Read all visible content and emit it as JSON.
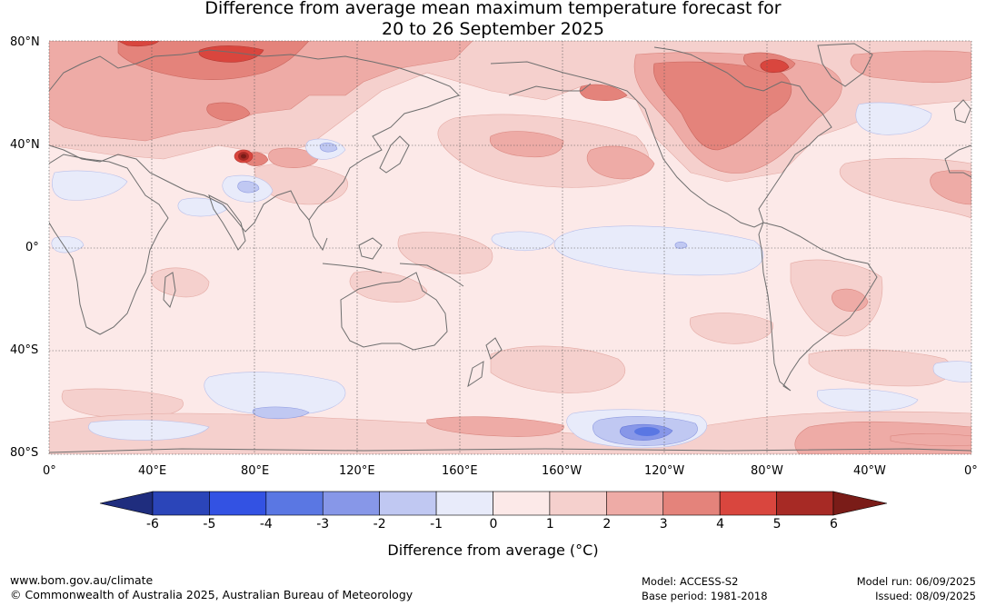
{
  "title": {
    "line1": "Difference from average mean maximum temperature forecast for",
    "line2": "20 to 26 September 2025"
  },
  "axes": {
    "lat_labels": [
      "80°N",
      "40°N",
      "0°",
      "40°S",
      "80°S"
    ],
    "lon_labels": [
      "0°",
      "40°E",
      "80°E",
      "120°E",
      "160°E",
      "160°W",
      "120°W",
      "80°W",
      "40°W",
      "0°"
    ]
  },
  "colorbar": {
    "title": "Difference from average (°C)",
    "ticks": [
      "-6",
      "-5",
      "-4",
      "-3",
      "-2",
      "-1",
      "0",
      "1",
      "2",
      "3",
      "4",
      "5",
      "6"
    ],
    "colors": [
      "#1f2d7e",
      "#2b45b9",
      "#3352e3",
      "#5a77e3",
      "#8797e8",
      "#c0c8f2",
      "#e8ebfa",
      "#fce9e8",
      "#f5d0cd",
      "#eeaba6",
      "#e4837b",
      "#d9463e",
      "#a72a25",
      "#7a1c18"
    ]
  },
  "footer": {
    "url": "www.bom.gov.au/climate",
    "copyright": "© Commonwealth of Australia 2025, Australian Bureau of Meteorology",
    "model": "Model: ACCESS-S2",
    "base_period": "Base period: 1981-2018",
    "model_run": "Model run: 06/09/2025",
    "issued": "Issued: 08/09/2025"
  }
}
